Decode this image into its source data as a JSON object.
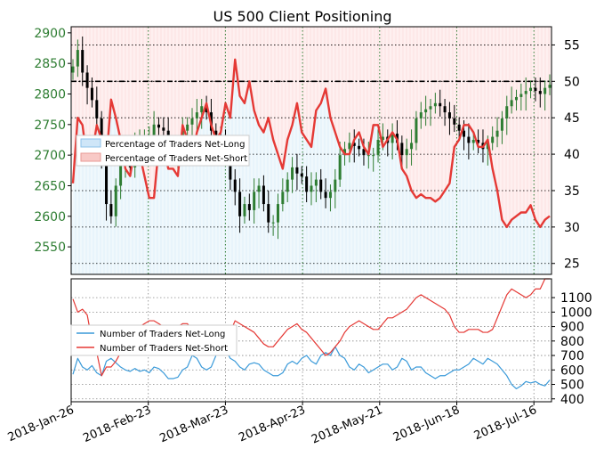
{
  "title": "US 500 Client Positioning",
  "colors": {
    "price_axis": "#2e7d32",
    "candle_up": "#2e7d32",
    "candle_down": "#000000",
    "long": "#3a9ad9",
    "short": "#e53935",
    "long_fill": "#e8f4fb",
    "short_fill": "#fde8e8"
  },
  "chart_data": [
    {
      "type": "candlestick+line",
      "title": "US 500 Client Positioning",
      "x_ticks": [
        "2018-Jan-26",
        "2018-Feb-23",
        "2018-Mar-23",
        "2018-Apr-23",
        "2018-May-21",
        "2018-Jun-18",
        "2018-Jul-16"
      ],
      "price_axis": {
        "side": "left",
        "ylim": [
          2505,
          2910
        ],
        "ticks": [
          2550,
          2600,
          2650,
          2700,
          2750,
          2800,
          2850,
          2900
        ]
      },
      "pct_axis": {
        "side": "right",
        "ylim": [
          23.5,
          57.5
        ],
        "ticks": [
          25,
          30,
          35,
          40,
          45,
          50,
          55
        ]
      },
      "legend": {
        "placement": "middle-left",
        "entries": [
          "Percentage of Traders Net-Long",
          "Percentage of Traders Net-Short"
        ]
      },
      "reference_line_pct": 50,
      "grid": true,
      "series_price_close": [
        2845,
        2872,
        2835,
        2810,
        2790,
        2760,
        2700,
        2620,
        2600,
        2650,
        2690,
        2700,
        2680,
        2720,
        2720,
        2730,
        2730,
        2750,
        2745,
        2740,
        2720,
        2700,
        2710,
        2740,
        2750,
        2760,
        2770,
        2780,
        2770,
        2740,
        2730,
        2720,
        2710,
        2660,
        2640,
        2600,
        2620,
        2610,
        2640,
        2650,
        2620,
        2590,
        2590,
        2620,
        2640,
        2660,
        2680,
        2670,
        2665,
        2640,
        2650,
        2660,
        2640,
        2630,
        2640,
        2660,
        2700,
        2710,
        2720,
        2715,
        2710,
        2700,
        2700,
        2700,
        2725,
        2730,
        2720,
        2735,
        2720,
        2700,
        2710,
        2720,
        2760,
        2770,
        2775,
        2780,
        2785,
        2780,
        2770,
        2760,
        2750,
        2740,
        2730,
        2720,
        2725,
        2720,
        2710,
        2720,
        2730,
        2740,
        2760,
        2780,
        2790,
        2795,
        2800,
        2805,
        2810,
        2805,
        2800,
        2810,
        2815
      ],
      "series_net_long_pct": [
        36.0,
        45.0,
        44.0,
        39.0,
        40.0,
        44.0,
        42.0,
        39.0,
        47.5,
        45.0,
        42.0,
        38.0,
        37.0,
        41.0,
        40.0,
        37.0,
        34.0,
        34.0,
        41.0,
        41.0,
        38.0,
        38.0,
        37.0,
        44.0,
        42.0,
        40.0,
        43.0,
        45.0,
        47.0,
        44.0,
        42.0,
        43.0,
        47.0,
        45.0,
        53.0,
        48.0,
        47.0,
        50.0,
        46.0,
        44.0,
        43.0,
        45.0,
        42.0,
        40.0,
        38.0,
        42.0,
        44.0,
        47.0,
        43.0,
        42.0,
        41.0,
        46.0,
        47.0,
        49.0,
        45.0,
        43.0,
        41.0,
        40.0,
        40.0,
        42.0,
        43.0,
        41.0,
        40.0,
        44.0,
        44.0,
        41.0,
        42.0,
        43.0,
        42.0,
        38.0,
        37.0,
        35.0,
        34.0,
        34.5,
        34.0,
        34.0,
        33.5,
        34.0,
        35.0,
        36.0,
        41.0,
        42.0,
        44.0,
        44.0,
        43.0,
        41.0,
        41.0,
        42.0,
        38.0,
        35.0,
        31.0,
        30.0,
        31.0,
        31.5,
        32.0,
        32.0,
        33.0,
        31.0,
        30.0,
        31.0,
        31.5
      ]
    },
    {
      "type": "line",
      "x_ticks": [
        "2018-Jan-26",
        "2018-Feb-23",
        "2018-Mar-23",
        "2018-Apr-23",
        "2018-May-21",
        "2018-Jun-18",
        "2018-Jul-16"
      ],
      "y_axis": {
        "side": "right",
        "ylim": [
          380,
          1230
        ],
        "ticks": [
          400,
          500,
          600,
          700,
          800,
          900,
          1000,
          1100
        ]
      },
      "legend": {
        "placement": "middle-left"
      },
      "grid": true,
      "series": [
        {
          "name": "Number of Traders Net-Long",
          "values": [
            570,
            680,
            620,
            600,
            630,
            580,
            560,
            660,
            680,
            650,
            620,
            600,
            590,
            610,
            590,
            600,
            580,
            620,
            610,
            580,
            540,
            540,
            550,
            600,
            620,
            700,
            680,
            620,
            600,
            620,
            700,
            760,
            740,
            680,
            660,
            620,
            600,
            640,
            650,
            640,
            600,
            580,
            560,
            560,
            580,
            640,
            660,
            640,
            680,
            700,
            660,
            640,
            700,
            720,
            700,
            760,
            700,
            680,
            620,
            600,
            640,
            620,
            580,
            600,
            620,
            640,
            640,
            600,
            620,
            680,
            660,
            600,
            620,
            620,
            580,
            560,
            540,
            560,
            560,
            580,
            600,
            600,
            620,
            640,
            680,
            660,
            640,
            680,
            660,
            640,
            600,
            560,
            500,
            470,
            490,
            520,
            510,
            520,
            500,
            490,
            530
          ]
        },
        {
          "name": "Number of Traders Net-Short",
          "values": [
            1090,
            1000,
            1020,
            980,
            800,
            720,
            560,
            620,
            620,
            660,
            720,
            780,
            780,
            860,
            900,
            920,
            940,
            940,
            920,
            900,
            880,
            860,
            900,
            920,
            920,
            880,
            860,
            800,
            760,
            720,
            720,
            780,
            780,
            860,
            940,
            920,
            900,
            880,
            860,
            820,
            780,
            760,
            760,
            800,
            840,
            880,
            900,
            920,
            880,
            860,
            820,
            780,
            740,
            700,
            720,
            760,
            800,
            860,
            900,
            920,
            940,
            920,
            900,
            880,
            880,
            920,
            960,
            960,
            980,
            1000,
            1020,
            1060,
            1100,
            1120,
            1100,
            1080,
            1060,
            1040,
            1020,
            980,
            900,
            860,
            860,
            880,
            880,
            880,
            860,
            860,
            880,
            960,
            1040,
            1120,
            1160,
            1140,
            1120,
            1100,
            1120,
            1160,
            1160,
            1230,
            1230
          ]
        }
      ]
    }
  ]
}
